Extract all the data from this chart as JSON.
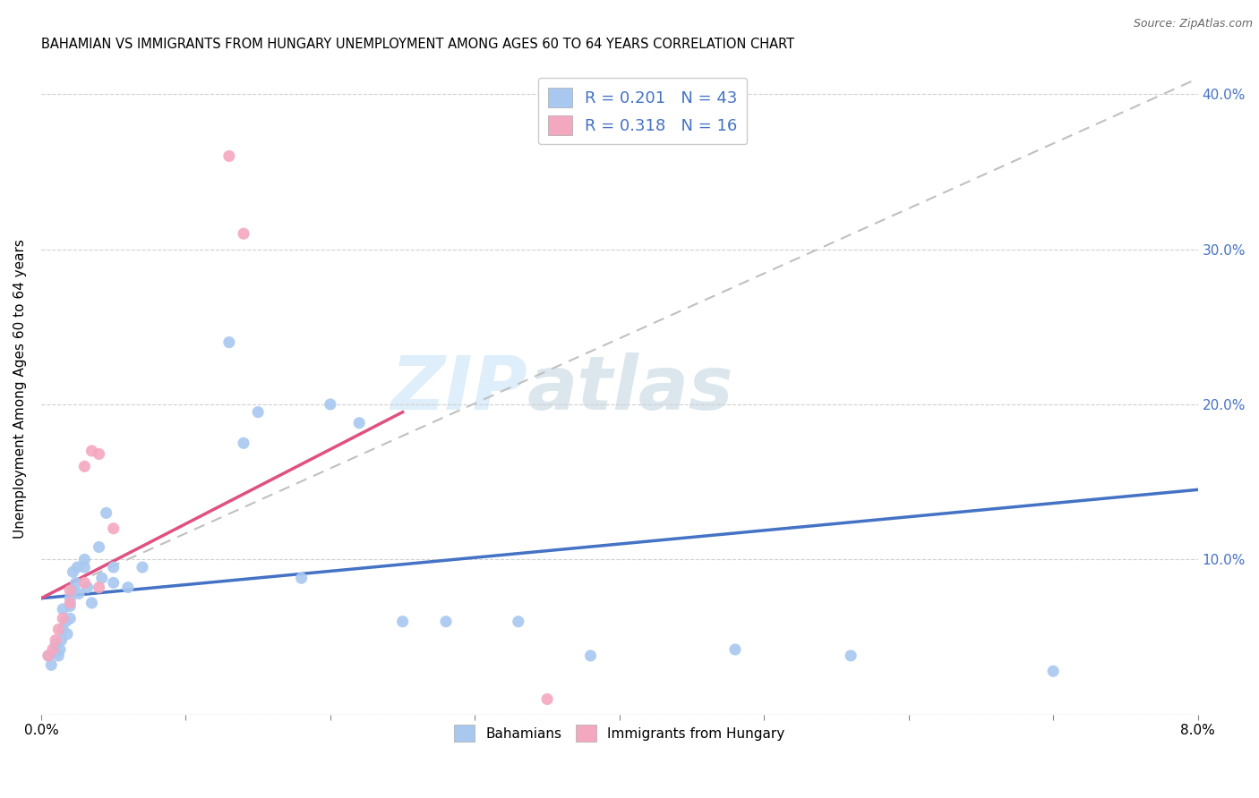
{
  "title": "BAHAMIAN VS IMMIGRANTS FROM HUNGARY UNEMPLOYMENT AMONG AGES 60 TO 64 YEARS CORRELATION CHART",
  "source": "Source: ZipAtlas.com",
  "ylabel": "Unemployment Among Ages 60 to 64 years",
  "xlim": [
    0.0,
    0.08
  ],
  "ylim": [
    0.0,
    0.42
  ],
  "xticks": [
    0.0,
    0.01,
    0.02,
    0.03,
    0.04,
    0.05,
    0.06,
    0.07,
    0.08
  ],
  "xticklabels": [
    "0.0%",
    "",
    "",
    "",
    "",
    "",
    "",
    "",
    "8.0%"
  ],
  "yticks_right": [
    0.0,
    0.1,
    0.2,
    0.3,
    0.4
  ],
  "yticklabels_right": [
    "",
    "10.0%",
    "20.0%",
    "30.0%",
    "40.0%"
  ],
  "bahamian_color": "#a8c8f0",
  "hungary_color": "#f4a8c0",
  "blue_line_color": "#4472c4",
  "pink_line_color": "#e05080",
  "dashed_line_color": "#c0c0c0",
  "legend_R_blue": "0.201",
  "legend_N_blue": "43",
  "legend_R_pink": "0.318",
  "legend_N_pink": "16",
  "watermark_zip": "ZIP",
  "watermark_atlas": "atlas",
  "bahamian_x": [
    0.0005,
    0.0007,
    0.001,
    0.001,
    0.0012,
    0.0013,
    0.0014,
    0.0015,
    0.0015,
    0.0017,
    0.0018,
    0.002,
    0.002,
    0.002,
    0.0022,
    0.0022,
    0.0024,
    0.0025,
    0.0026,
    0.003,
    0.003,
    0.0032,
    0.0035,
    0.004,
    0.0042,
    0.0045,
    0.005,
    0.005,
    0.006,
    0.007,
    0.013,
    0.014,
    0.015,
    0.018,
    0.02,
    0.022,
    0.025,
    0.028,
    0.033,
    0.038,
    0.048,
    0.056,
    0.07
  ],
  "bahamian_y": [
    0.038,
    0.032,
    0.04,
    0.045,
    0.038,
    0.042,
    0.048,
    0.055,
    0.068,
    0.06,
    0.052,
    0.062,
    0.07,
    0.075,
    0.08,
    0.092,
    0.085,
    0.095,
    0.078,
    0.095,
    0.1,
    0.082,
    0.072,
    0.108,
    0.088,
    0.13,
    0.085,
    0.095,
    0.082,
    0.095,
    0.24,
    0.175,
    0.195,
    0.088,
    0.2,
    0.188,
    0.06,
    0.06,
    0.06,
    0.038,
    0.042,
    0.038,
    0.028
  ],
  "hungary_x": [
    0.0005,
    0.0008,
    0.001,
    0.0012,
    0.0015,
    0.002,
    0.002,
    0.003,
    0.003,
    0.0035,
    0.004,
    0.004,
    0.005,
    0.013,
    0.014,
    0.035
  ],
  "hungary_y": [
    0.038,
    0.042,
    0.048,
    0.055,
    0.062,
    0.072,
    0.08,
    0.085,
    0.16,
    0.17,
    0.082,
    0.168,
    0.12,
    0.36,
    0.31,
    0.01
  ],
  "blue_line_x": [
    0.0,
    0.08
  ],
  "blue_line_y": [
    0.075,
    0.145
  ],
  "pink_line_x": [
    0.0,
    0.025
  ],
  "pink_line_y": [
    0.075,
    0.195
  ],
  "dashed_line_x": [
    0.0,
    0.08
  ],
  "dashed_line_y": [
    0.075,
    0.41
  ]
}
